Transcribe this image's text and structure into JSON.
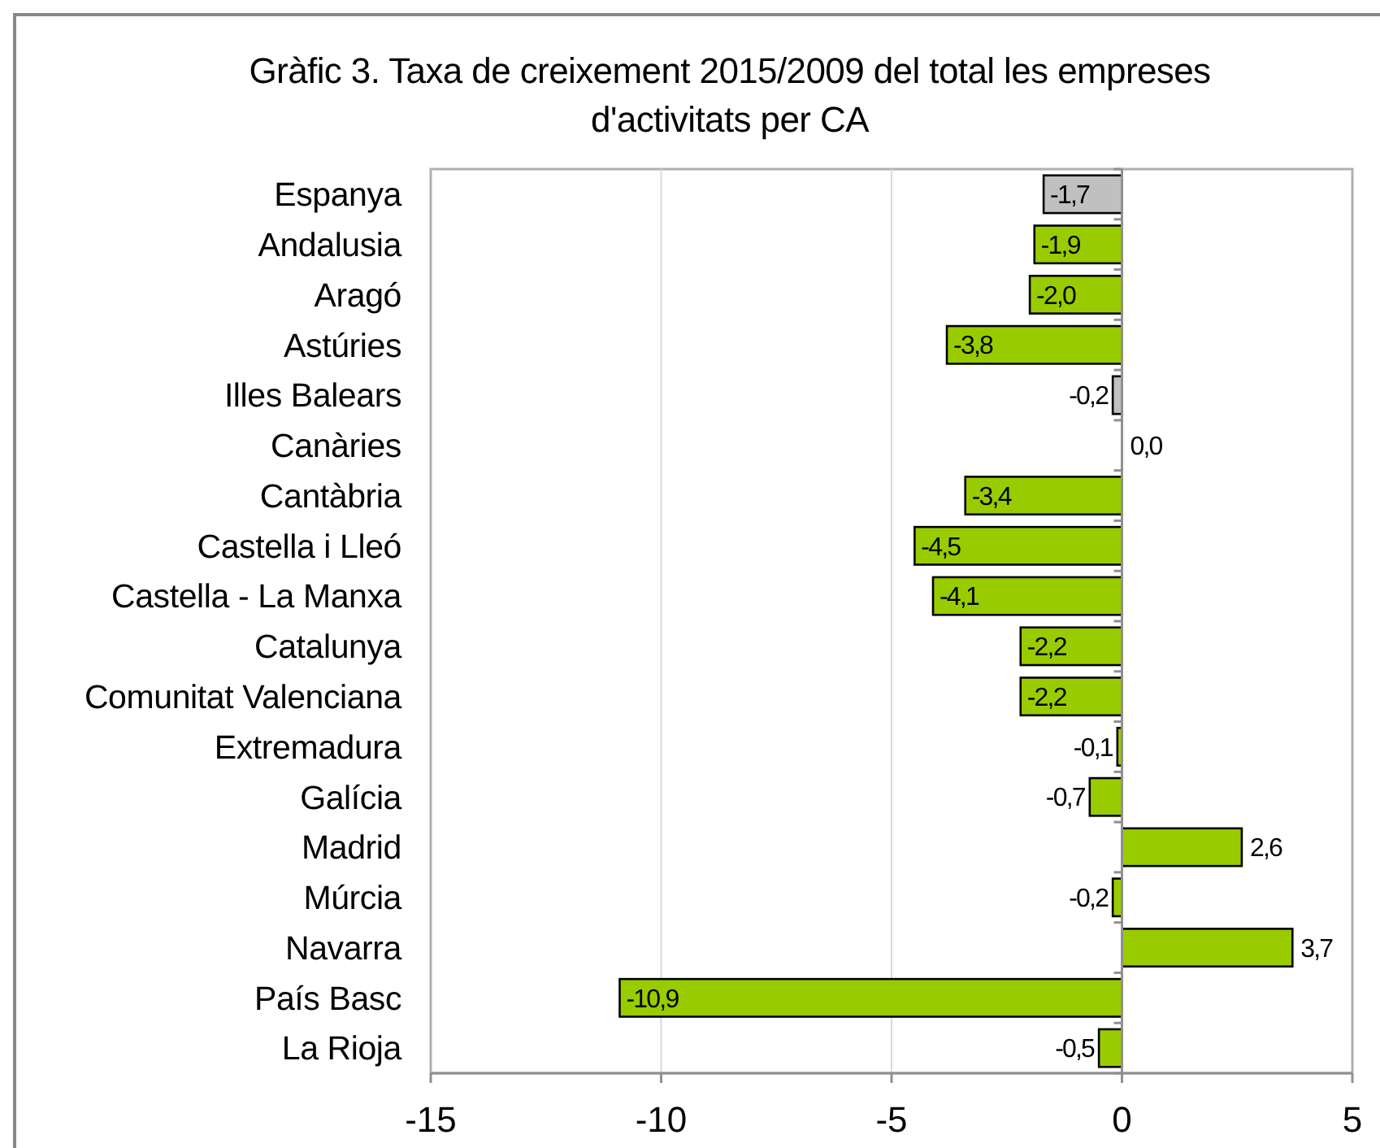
{
  "chart_data": {
    "type": "bar",
    "orientation": "horizontal",
    "title": "Gràfic 3. Taxa de creixement 2015/2009 del total les empreses d'activitats per CA",
    "categories": [
      "Espanya",
      "Andalusia",
      "Aragó",
      "Astúries",
      "Illes Balears",
      "Canàries",
      "Cantàbria",
      "Castella i Lleó",
      "Castella - La Manxa",
      "Catalunya",
      "Comunitat Valenciana",
      "Extremadura",
      "Galícia",
      "Madrid",
      "Múrcia",
      "Navarra",
      "País Basc",
      "La Rioja"
    ],
    "values": [
      -1.7,
      -1.9,
      -2.0,
      -3.8,
      -0.2,
      0.0,
      -3.4,
      -4.5,
      -4.1,
      -2.2,
      -2.2,
      -0.1,
      -0.7,
      2.6,
      -0.2,
      3.7,
      -10.9,
      -0.5
    ],
    "value_labels": [
      "-1,7",
      "-1,9",
      "-2,0",
      "-3,8",
      "-0,2",
      "0,0",
      "-3,4",
      "-4,5",
      "-4,1",
      "-2,2",
      "-2,2",
      "-0,1",
      "-0,7",
      "2,6",
      "-0,2",
      "3,7",
      "-10,9",
      "-0,5"
    ],
    "colors": [
      "#c0c0c0",
      "#99cc00",
      "#99cc00",
      "#99cc00",
      "#c0c0c0",
      "#99cc00",
      "#99cc00",
      "#99cc00",
      "#99cc00",
      "#99cc00",
      "#99cc00",
      "#99cc00",
      "#99cc00",
      "#99cc00",
      "#99cc00",
      "#99cc00",
      "#99cc00",
      "#99cc00"
    ],
    "xlim": [
      -15,
      5
    ],
    "xticks": [
      -15,
      -10,
      -5,
      0,
      5
    ],
    "grid": "x"
  }
}
